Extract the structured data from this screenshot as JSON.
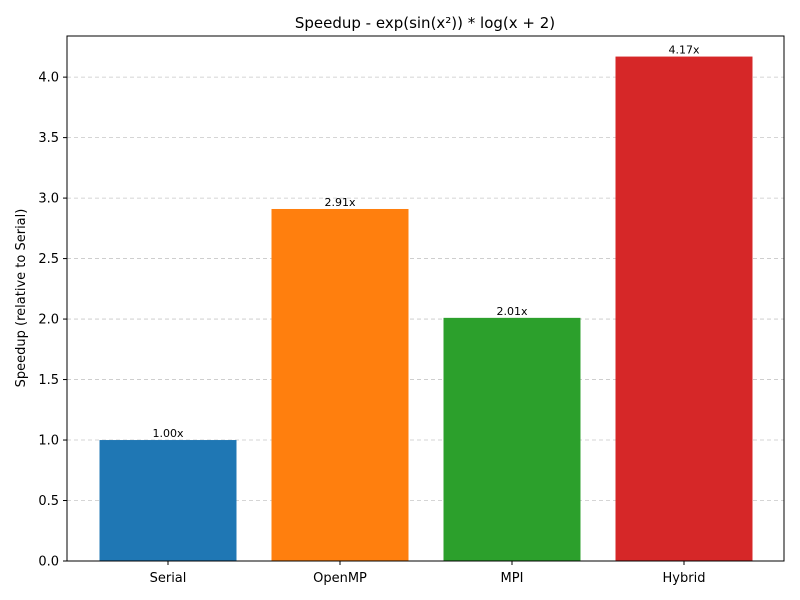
{
  "chart_data": {
    "type": "bar",
    "title": "Speedup - exp(sin(x²)) * log(x + 2)",
    "xlabel": "",
    "ylabel": "Speedup (relative to Serial)",
    "categories": [
      "Serial",
      "OpenMP",
      "MPI",
      "Hybrid"
    ],
    "values": [
      1.0,
      2.91,
      2.01,
      4.17
    ],
    "data_labels": [
      "1.00x",
      "2.91x",
      "2.01x",
      "4.17x"
    ],
    "colors": [
      "#1f77b4",
      "#ff7f0e",
      "#2ca02c",
      "#d62728"
    ],
    "ylim": [
      0,
      4.34
    ],
    "yticks": [
      0.0,
      0.5,
      1.0,
      1.5,
      2.0,
      2.5,
      3.0,
      3.5,
      4.0
    ],
    "ytick_labels": [
      "0.0",
      "0.5",
      "1.0",
      "1.5",
      "2.0",
      "2.5",
      "3.0",
      "3.5",
      "4.0"
    ],
    "grid": "y-dashed",
    "legend": "none"
  }
}
